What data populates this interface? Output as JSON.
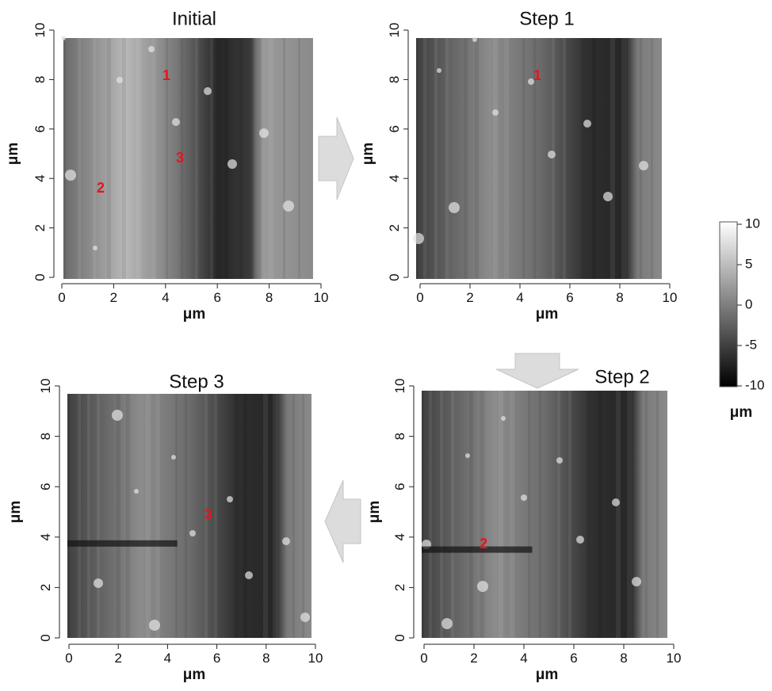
{
  "panels": [
    {
      "title": "Initial",
      "x_label": "μm",
      "y_label": "μm",
      "xticks": [
        0,
        2,
        4,
        6,
        8,
        10
      ],
      "yticks": [
        0,
        2,
        4,
        6,
        8,
        10
      ],
      "markers": [
        "1",
        "3",
        "2"
      ]
    },
    {
      "title": "Step 1",
      "x_label": "μm",
      "y_label": "μm",
      "xticks": [
        0,
        2,
        4,
        6,
        8,
        10
      ],
      "yticks": [
        0,
        2,
        4,
        6,
        8,
        10
      ],
      "markers": [
        "1"
      ]
    },
    {
      "title": "Step 2",
      "x_label": "μm",
      "y_label": "μm",
      "xticks": [
        0,
        2,
        4,
        6,
        8,
        10
      ],
      "yticks": [
        0,
        2,
        4,
        6,
        8,
        10
      ],
      "markers": [
        "2"
      ]
    },
    {
      "title": "Step 3",
      "x_label": "μm",
      "y_label": "μm",
      "xticks": [
        0,
        2,
        4,
        6,
        8,
        10
      ],
      "yticks": [
        0,
        2,
        4,
        6,
        8,
        10
      ],
      "markers": [
        "3"
      ]
    }
  ],
  "colorbar": {
    "label": "μm",
    "ticks": [
      10,
      5,
      0,
      -5,
      -10
    ]
  }
}
